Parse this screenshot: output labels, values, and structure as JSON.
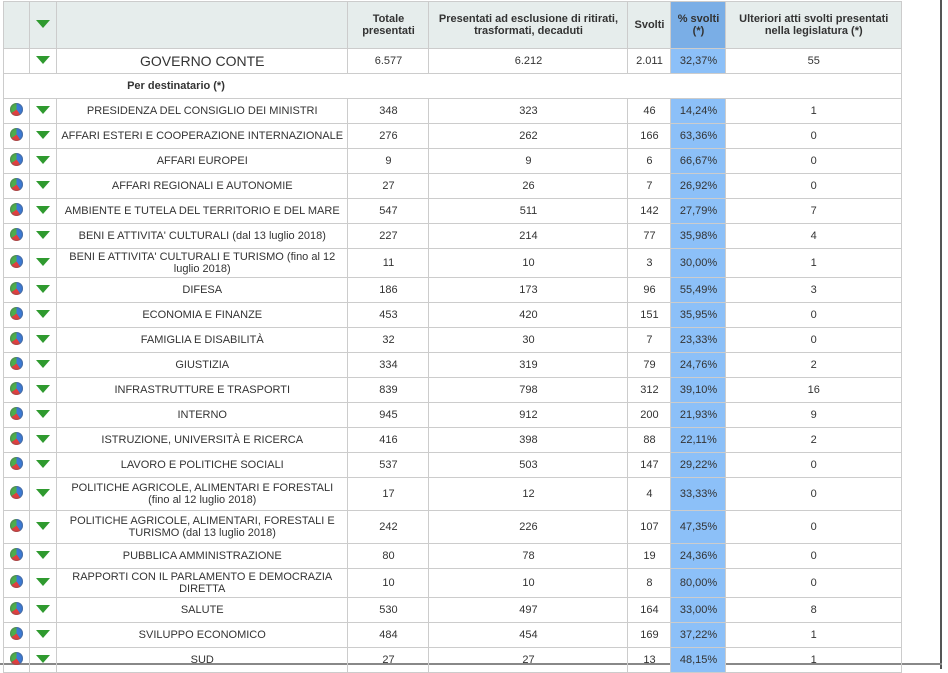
{
  "header": {
    "totale": "Totale presentati",
    "presentati": "Presentati ad esclusione di ritirati, trasformati, decaduti",
    "svolti": "Svolti",
    "pct": "% svolti (*)",
    "ulteriori": "Ulteriori atti svolti presentati nella legislatura (*)"
  },
  "governo": {
    "name": "GOVERNO CONTE",
    "totale": "6.577",
    "presentati": "6.212",
    "svolti": "2.011",
    "pct": "32,37%",
    "ulteriori": "55"
  },
  "section": "Per destinatario (*)",
  "rows": [
    [
      "PRESIDENZA DEL CONSIGLIO DEI MINISTRI",
      "348",
      "323",
      "46",
      "14,24%",
      "1"
    ],
    [
      "AFFARI ESTERI E COOPERAZIONE INTERNAZIONALE",
      "276",
      "262",
      "166",
      "63,36%",
      "0"
    ],
    [
      "AFFARI EUROPEI",
      "9",
      "9",
      "6",
      "66,67%",
      "0"
    ],
    [
      "AFFARI REGIONALI E AUTONOMIE",
      "27",
      "26",
      "7",
      "26,92%",
      "0"
    ],
    [
      "AMBIENTE E TUTELA DEL TERRITORIO E DEL MARE",
      "547",
      "511",
      "142",
      "27,79%",
      "7"
    ],
    [
      "BENI E ATTIVITA' CULTURALI (dal 13 luglio 2018)",
      "227",
      "214",
      "77",
      "35,98%",
      "4"
    ],
    [
      "BENI E ATTIVITA' CULTURALI E TURISMO (fino al 12 luglio 2018)",
      "11",
      "10",
      "3",
      "30,00%",
      "1"
    ],
    [
      "DIFESA",
      "186",
      "173",
      "96",
      "55,49%",
      "3"
    ],
    [
      "ECONOMIA E FINANZE",
      "453",
      "420",
      "151",
      "35,95%",
      "0"
    ],
    [
      "FAMIGLIA E DISABILITÀ",
      "32",
      "30",
      "7",
      "23,33%",
      "0"
    ],
    [
      "GIUSTIZIA",
      "334",
      "319",
      "79",
      "24,76%",
      "2"
    ],
    [
      "INFRASTRUTTURE E TRASPORTI",
      "839",
      "798",
      "312",
      "39,10%",
      "16"
    ],
    [
      "INTERNO",
      "945",
      "912",
      "200",
      "21,93%",
      "9"
    ],
    [
      "ISTRUZIONE, UNIVERSITÀ E RICERCA",
      "416",
      "398",
      "88",
      "22,11%",
      "2"
    ],
    [
      "LAVORO E POLITICHE SOCIALI",
      "537",
      "503",
      "147",
      "29,22%",
      "0"
    ],
    [
      "POLITICHE AGRICOLE, ALIMENTARI E FORESTALI (fino al 12 luglio 2018)",
      "17",
      "12",
      "4",
      "33,33%",
      "0"
    ],
    [
      "POLITICHE AGRICOLE, ALIMENTARI, FORESTALI E TURISMO (dal 13 luglio 2018)",
      "242",
      "226",
      "107",
      "47,35%",
      "0"
    ],
    [
      "PUBBLICA AMMINISTRAZIONE",
      "80",
      "78",
      "19",
      "24,36%",
      "0"
    ],
    [
      "RAPPORTI CON IL PARLAMENTO E DEMOCRAZIA DIRETTA",
      "10",
      "10",
      "8",
      "80,00%",
      "0"
    ],
    [
      "SALUTE",
      "530",
      "497",
      "164",
      "33,00%",
      "8"
    ],
    [
      "SVILUPPO ECONOMICO",
      "484",
      "454",
      "169",
      "37,22%",
      "1"
    ],
    [
      "SUD",
      "27",
      "27",
      "13",
      "48,15%",
      "1"
    ]
  ]
}
